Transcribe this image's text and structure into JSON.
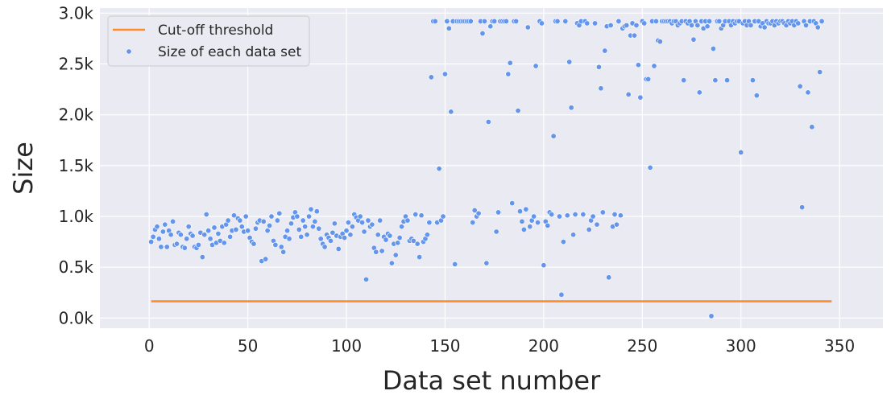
{
  "chart_data": {
    "type": "scatter",
    "xlabel": "Data set number",
    "ylabel": "Size",
    "xlim": [
      -25,
      372
    ],
    "ylim": [
      -100,
      3050
    ],
    "xticks": [
      0,
      50,
      100,
      150,
      200,
      250,
      300,
      350
    ],
    "xtick_labels": [
      "0",
      "50",
      "100",
      "150",
      "200",
      "250",
      "300",
      "350"
    ],
    "yticks": [
      0,
      500,
      1000,
      1500,
      2000,
      2500,
      3000
    ],
    "ytick_labels": [
      "0.0k",
      "0.5k",
      "1.0k",
      "1.5k",
      "2.0k",
      "2.5k",
      "3.0k"
    ],
    "grid": true,
    "legend_position": "top-left",
    "colors": {
      "background": "#eaeaf2",
      "grid": "#ffffff",
      "threshold": "#ff8c28",
      "points": "#6495ed"
    },
    "series": [
      {
        "name": "Cut-off threshold",
        "kind": "line",
        "x": [
          1,
          346
        ],
        "y": [
          165,
          165
        ]
      },
      {
        "name": "Size of each data set",
        "kind": "scatter",
        "points": [
          [
            1,
            750
          ],
          [
            2,
            800
          ],
          [
            3,
            870
          ],
          [
            4,
            900
          ],
          [
            5,
            780
          ],
          [
            6,
            700
          ],
          [
            7,
            850
          ],
          [
            8,
            920
          ],
          [
            9,
            700
          ],
          [
            10,
            860
          ],
          [
            11,
            820
          ],
          [
            12,
            950
          ],
          [
            13,
            720
          ],
          [
            14,
            730
          ],
          [
            15,
            840
          ],
          [
            16,
            820
          ],
          [
            17,
            700
          ],
          [
            18,
            690
          ],
          [
            19,
            780
          ],
          [
            20,
            900
          ],
          [
            21,
            830
          ],
          [
            22,
            810
          ],
          [
            23,
            700
          ],
          [
            24,
            690
          ],
          [
            25,
            720
          ],
          [
            26,
            840
          ],
          [
            27,
            600
          ],
          [
            28,
            820
          ],
          [
            29,
            1020
          ],
          [
            30,
            860
          ],
          [
            31,
            780
          ],
          [
            32,
            720
          ],
          [
            33,
            890
          ],
          [
            34,
            740
          ],
          [
            35,
            830
          ],
          [
            36,
            760
          ],
          [
            37,
            900
          ],
          [
            38,
            740
          ],
          [
            39,
            920
          ],
          [
            40,
            960
          ],
          [
            41,
            800
          ],
          [
            42,
            860
          ],
          [
            43,
            1010
          ],
          [
            44,
            870
          ],
          [
            45,
            980
          ],
          [
            46,
            960
          ],
          [
            47,
            900
          ],
          [
            48,
            850
          ],
          [
            49,
            1000
          ],
          [
            50,
            860
          ],
          [
            51,
            790
          ],
          [
            52,
            750
          ],
          [
            53,
            730
          ],
          [
            54,
            880
          ],
          [
            55,
            940
          ],
          [
            56,
            960
          ],
          [
            57,
            560
          ],
          [
            58,
            950
          ],
          [
            59,
            580
          ],
          [
            60,
            860
          ],
          [
            61,
            910
          ],
          [
            62,
            1000
          ],
          [
            63,
            760
          ],
          [
            64,
            720
          ],
          [
            65,
            960
          ],
          [
            66,
            1030
          ],
          [
            67,
            700
          ],
          [
            68,
            650
          ],
          [
            69,
            800
          ],
          [
            70,
            860
          ],
          [
            71,
            780
          ],
          [
            72,
            930
          ],
          [
            73,
            990
          ],
          [
            74,
            1040
          ],
          [
            75,
            1000
          ],
          [
            76,
            870
          ],
          [
            77,
            800
          ],
          [
            78,
            960
          ],
          [
            79,
            900
          ],
          [
            80,
            820
          ],
          [
            81,
            1000
          ],
          [
            82,
            1070
          ],
          [
            83,
            900
          ],
          [
            84,
            950
          ],
          [
            85,
            1050
          ],
          [
            86,
            880
          ],
          [
            87,
            780
          ],
          [
            88,
            730
          ],
          [
            89,
            700
          ],
          [
            90,
            820
          ],
          [
            91,
            790
          ],
          [
            92,
            760
          ],
          [
            93,
            840
          ],
          [
            94,
            930
          ],
          [
            95,
            810
          ],
          [
            96,
            680
          ],
          [
            97,
            800
          ],
          [
            98,
            830
          ],
          [
            99,
            790
          ],
          [
            100,
            860
          ],
          [
            101,
            940
          ],
          [
            102,
            820
          ],
          [
            103,
            900
          ],
          [
            104,
            1020
          ],
          [
            105,
            990
          ],
          [
            106,
            960
          ],
          [
            107,
            1000
          ],
          [
            108,
            940
          ],
          [
            109,
            850
          ],
          [
            110,
            380
          ],
          [
            111,
            960
          ],
          [
            112,
            900
          ],
          [
            113,
            920
          ],
          [
            114,
            690
          ],
          [
            115,
            650
          ],
          [
            116,
            820
          ],
          [
            117,
            960
          ],
          [
            118,
            660
          ],
          [
            119,
            800
          ],
          [
            120,
            770
          ],
          [
            121,
            830
          ],
          [
            122,
            810
          ],
          [
            123,
            540
          ],
          [
            124,
            730
          ],
          [
            125,
            620
          ],
          [
            126,
            740
          ],
          [
            127,
            790
          ],
          [
            128,
            900
          ],
          [
            129,
            950
          ],
          [
            130,
            1000
          ],
          [
            131,
            960
          ],
          [
            132,
            760
          ],
          [
            133,
            780
          ],
          [
            134,
            760
          ],
          [
            135,
            1020
          ],
          [
            136,
            730
          ],
          [
            137,
            600
          ],
          [
            138,
            1010
          ],
          [
            139,
            750
          ],
          [
            140,
            780
          ],
          [
            141,
            820
          ],
          [
            142,
            940
          ],
          [
            143,
            2370
          ],
          [
            144,
            2920
          ],
          [
            145,
            2920
          ],
          [
            146,
            940
          ],
          [
            147,
            1470
          ],
          [
            148,
            960
          ],
          [
            149,
            1000
          ],
          [
            150,
            2400
          ],
          [
            151,
            2920
          ],
          [
            152,
            2850
          ],
          [
            153,
            2030
          ],
          [
            154,
            2920
          ],
          [
            155,
            530
          ],
          [
            156,
            2920
          ],
          [
            157,
            2920
          ],
          [
            158,
            2920
          ],
          [
            159,
            2920
          ],
          [
            160,
            2920
          ],
          [
            161,
            2920
          ],
          [
            162,
            2920
          ],
          [
            163,
            2920
          ],
          [
            164,
            940
          ],
          [
            165,
            1060
          ],
          [
            166,
            1000
          ],
          [
            167,
            1030
          ],
          [
            168,
            2920
          ],
          [
            169,
            2800
          ],
          [
            170,
            2920
          ],
          [
            171,
            540
          ],
          [
            172,
            1930
          ],
          [
            173,
            2870
          ],
          [
            174,
            2920
          ],
          [
            175,
            2920
          ],
          [
            176,
            850
          ],
          [
            177,
            1040
          ],
          [
            178,
            2920
          ],
          [
            179,
            2920
          ],
          [
            180,
            2920
          ],
          [
            181,
            2920
          ],
          [
            182,
            2400
          ],
          [
            183,
            2510
          ],
          [
            184,
            1130
          ],
          [
            185,
            2920
          ],
          [
            186,
            2920
          ],
          [
            187,
            2040
          ],
          [
            188,
            1050
          ],
          [
            189,
            950
          ],
          [
            190,
            870
          ],
          [
            191,
            1070
          ],
          [
            192,
            2860
          ],
          [
            193,
            900
          ],
          [
            194,
            960
          ],
          [
            195,
            1000
          ],
          [
            196,
            2480
          ],
          [
            197,
            940
          ],
          [
            198,
            2920
          ],
          [
            199,
            2900
          ],
          [
            200,
            520
          ],
          [
            201,
            950
          ],
          [
            202,
            910
          ],
          [
            203,
            1040
          ],
          [
            204,
            1020
          ],
          [
            205,
            1790
          ],
          [
            206,
            2920
          ],
          [
            207,
            2920
          ],
          [
            208,
            1000
          ],
          [
            209,
            230
          ],
          [
            210,
            750
          ],
          [
            211,
            2920
          ],
          [
            212,
            1010
          ],
          [
            213,
            2520
          ],
          [
            214,
            2070
          ],
          [
            215,
            820
          ],
          [
            216,
            1020
          ],
          [
            217,
            2900
          ],
          [
            218,
            2880
          ],
          [
            219,
            2920
          ],
          [
            220,
            1020
          ],
          [
            221,
            2920
          ],
          [
            222,
            2900
          ],
          [
            223,
            870
          ],
          [
            224,
            960
          ],
          [
            225,
            1000
          ],
          [
            226,
            2900
          ],
          [
            227,
            920
          ],
          [
            228,
            2470
          ],
          [
            229,
            2260
          ],
          [
            230,
            1040
          ],
          [
            231,
            2630
          ],
          [
            232,
            2870
          ],
          [
            233,
            400
          ],
          [
            234,
            2880
          ],
          [
            235,
            900
          ],
          [
            236,
            1020
          ],
          [
            237,
            920
          ],
          [
            238,
            2920
          ],
          [
            239,
            1010
          ],
          [
            240,
            2850
          ],
          [
            241,
            2870
          ],
          [
            242,
            2880
          ],
          [
            243,
            2200
          ],
          [
            244,
            2780
          ],
          [
            245,
            2900
          ],
          [
            246,
            2780
          ],
          [
            247,
            2880
          ],
          [
            248,
            2490
          ],
          [
            249,
            2170
          ],
          [
            250,
            2920
          ]
        ]
      }
    ]
  },
  "extra_points": [
    [
      251,
      2900
    ],
    [
      252,
      2350
    ],
    [
      253,
      2350
    ],
    [
      254,
      1480
    ],
    [
      255,
      2920
    ],
    [
      256,
      2480
    ],
    [
      257,
      2920
    ],
    [
      258,
      2730
    ],
    [
      259,
      2720
    ],
    [
      260,
      2920
    ],
    [
      261,
      2920
    ],
    [
      262,
      2920
    ],
    [
      263,
      2920
    ],
    [
      264,
      2920
    ],
    [
      265,
      2900
    ],
    [
      266,
      2920
    ],
    [
      267,
      2920
    ],
    [
      268,
      2880
    ],
    [
      269,
      2900
    ],
    [
      270,
      2920
    ],
    [
      271,
      2340
    ],
    [
      272,
      2920
    ],
    [
      273,
      2900
    ],
    [
      274,
      2920
    ],
    [
      275,
      2880
    ],
    [
      276,
      2740
    ],
    [
      277,
      2920
    ],
    [
      278,
      2880
    ],
    [
      279,
      2220
    ],
    [
      280,
      2920
    ],
    [
      281,
      2850
    ],
    [
      282,
      2920
    ],
    [
      283,
      2870
    ],
    [
      284,
      2920
    ],
    [
      285,
      20
    ],
    [
      286,
      2650
    ],
    [
      287,
      2340
    ],
    [
      288,
      2920
    ],
    [
      289,
      2920
    ],
    [
      290,
      2850
    ],
    [
      291,
      2880
    ],
    [
      292,
      2920
    ],
    [
      293,
      2340
    ],
    [
      294,
      2920
    ],
    [
      295,
      2880
    ],
    [
      296,
      2920
    ],
    [
      297,
      2900
    ],
    [
      298,
      2920
    ],
    [
      299,
      2920
    ],
    [
      300,
      1630
    ],
    [
      301,
      2900
    ],
    [
      302,
      2920
    ],
    [
      303,
      2880
    ],
    [
      304,
      2920
    ],
    [
      305,
      2880
    ],
    [
      306,
      2340
    ],
    [
      307,
      2920
    ],
    [
      308,
      2190
    ],
    [
      309,
      2920
    ],
    [
      310,
      2870
    ],
    [
      311,
      2900
    ],
    [
      312,
      2860
    ],
    [
      313,
      2920
    ],
    [
      314,
      2900
    ],
    [
      315,
      2900
    ],
    [
      316,
      2920
    ],
    [
      317,
      2880
    ],
    [
      318,
      2920
    ],
    [
      319,
      2900
    ],
    [
      320,
      2920
    ],
    [
      321,
      2920
    ],
    [
      322,
      2900
    ],
    [
      323,
      2880
    ],
    [
      324,
      2920
    ],
    [
      325,
      2900
    ],
    [
      326,
      2920
    ],
    [
      327,
      2880
    ],
    [
      328,
      2920
    ],
    [
      329,
      2900
    ],
    [
      330,
      2280
    ],
    [
      331,
      1090
    ],
    [
      332,
      2920
    ],
    [
      333,
      2880
    ],
    [
      334,
      2220
    ],
    [
      335,
      2920
    ],
    [
      336,
      1880
    ],
    [
      337,
      2920
    ],
    [
      338,
      2900
    ],
    [
      339,
      2860
    ],
    [
      340,
      2420
    ],
    [
      341,
      2920
    ]
  ]
}
